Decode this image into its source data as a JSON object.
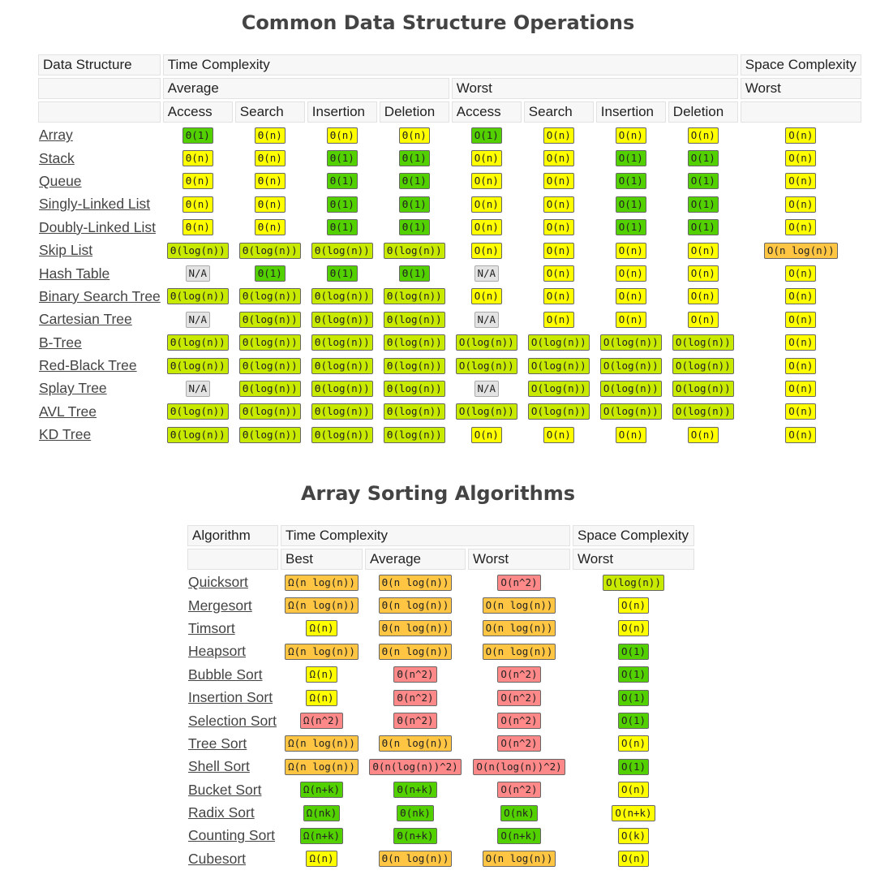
{
  "ds": {
    "title": "Common Data Structure Operations",
    "headers": {
      "data_structure": "Data Structure",
      "time_complexity": "Time Complexity",
      "space_complexity": "Space Complexity",
      "average": "Average",
      "worst": "Worst",
      "space_worst": "Worst",
      "ops": [
        "Access",
        "Search",
        "Insertion",
        "Deletion",
        "Access",
        "Search",
        "Insertion",
        "Deletion"
      ]
    },
    "rows": [
      {
        "name": "Array",
        "cells": [
          [
            "Θ(1)",
            "green"
          ],
          [
            "Θ(n)",
            "yellow"
          ],
          [
            "Θ(n)",
            "yellow"
          ],
          [
            "Θ(n)",
            "yellow"
          ],
          [
            "O(1)",
            "green"
          ],
          [
            "O(n)",
            "yellow"
          ],
          [
            "O(n)",
            "yellow"
          ],
          [
            "O(n)",
            "yellow"
          ],
          [
            "O(n)",
            "yellow"
          ]
        ]
      },
      {
        "name": "Stack",
        "cells": [
          [
            "Θ(n)",
            "yellow"
          ],
          [
            "Θ(n)",
            "yellow"
          ],
          [
            "Θ(1)",
            "green"
          ],
          [
            "Θ(1)",
            "green"
          ],
          [
            "O(n)",
            "yellow"
          ],
          [
            "O(n)",
            "yellow"
          ],
          [
            "O(1)",
            "green"
          ],
          [
            "O(1)",
            "green"
          ],
          [
            "O(n)",
            "yellow"
          ]
        ]
      },
      {
        "name": "Queue",
        "cells": [
          [
            "Θ(n)",
            "yellow"
          ],
          [
            "Θ(n)",
            "yellow"
          ],
          [
            "Θ(1)",
            "green"
          ],
          [
            "Θ(1)",
            "green"
          ],
          [
            "O(n)",
            "yellow"
          ],
          [
            "O(n)",
            "yellow"
          ],
          [
            "O(1)",
            "green"
          ],
          [
            "O(1)",
            "green"
          ],
          [
            "O(n)",
            "yellow"
          ]
        ]
      },
      {
        "name": "Singly-Linked List",
        "cells": [
          [
            "Θ(n)",
            "yellow"
          ],
          [
            "Θ(n)",
            "yellow"
          ],
          [
            "Θ(1)",
            "green"
          ],
          [
            "Θ(1)",
            "green"
          ],
          [
            "O(n)",
            "yellow"
          ],
          [
            "O(n)",
            "yellow"
          ],
          [
            "O(1)",
            "green"
          ],
          [
            "O(1)",
            "green"
          ],
          [
            "O(n)",
            "yellow"
          ]
        ]
      },
      {
        "name": "Doubly-Linked List",
        "cells": [
          [
            "Θ(n)",
            "yellow"
          ],
          [
            "Θ(n)",
            "yellow"
          ],
          [
            "Θ(1)",
            "green"
          ],
          [
            "Θ(1)",
            "green"
          ],
          [
            "O(n)",
            "yellow"
          ],
          [
            "O(n)",
            "yellow"
          ],
          [
            "O(1)",
            "green"
          ],
          [
            "O(1)",
            "green"
          ],
          [
            "O(n)",
            "yellow"
          ]
        ]
      },
      {
        "name": "Skip List",
        "cells": [
          [
            "Θ(log(n))",
            "yellowgreen"
          ],
          [
            "Θ(log(n))",
            "yellowgreen"
          ],
          [
            "Θ(log(n))",
            "yellowgreen"
          ],
          [
            "Θ(log(n))",
            "yellowgreen"
          ],
          [
            "O(n)",
            "yellow"
          ],
          [
            "O(n)",
            "yellow"
          ],
          [
            "O(n)",
            "yellow"
          ],
          [
            "O(n)",
            "yellow"
          ],
          [
            "O(n log(n))",
            "orange"
          ]
        ]
      },
      {
        "name": "Hash Table",
        "cells": [
          [
            "N/A",
            "gray"
          ],
          [
            "Θ(1)",
            "green"
          ],
          [
            "Θ(1)",
            "green"
          ],
          [
            "Θ(1)",
            "green"
          ],
          [
            "N/A",
            "gray"
          ],
          [
            "O(n)",
            "yellow"
          ],
          [
            "O(n)",
            "yellow"
          ],
          [
            "O(n)",
            "yellow"
          ],
          [
            "O(n)",
            "yellow"
          ]
        ]
      },
      {
        "name": "Binary Search Tree",
        "cells": [
          [
            "Θ(log(n))",
            "yellowgreen"
          ],
          [
            "Θ(log(n))",
            "yellowgreen"
          ],
          [
            "Θ(log(n))",
            "yellowgreen"
          ],
          [
            "Θ(log(n))",
            "yellowgreen"
          ],
          [
            "O(n)",
            "yellow"
          ],
          [
            "O(n)",
            "yellow"
          ],
          [
            "O(n)",
            "yellow"
          ],
          [
            "O(n)",
            "yellow"
          ],
          [
            "O(n)",
            "yellow"
          ]
        ]
      },
      {
        "name": "Cartesian Tree",
        "cells": [
          [
            "N/A",
            "gray"
          ],
          [
            "Θ(log(n))",
            "yellowgreen"
          ],
          [
            "Θ(log(n))",
            "yellowgreen"
          ],
          [
            "Θ(log(n))",
            "yellowgreen"
          ],
          [
            "N/A",
            "gray"
          ],
          [
            "O(n)",
            "yellow"
          ],
          [
            "O(n)",
            "yellow"
          ],
          [
            "O(n)",
            "yellow"
          ],
          [
            "O(n)",
            "yellow"
          ]
        ]
      },
      {
        "name": "B-Tree",
        "cells": [
          [
            "Θ(log(n))",
            "yellowgreen"
          ],
          [
            "Θ(log(n))",
            "yellowgreen"
          ],
          [
            "Θ(log(n))",
            "yellowgreen"
          ],
          [
            "Θ(log(n))",
            "yellowgreen"
          ],
          [
            "O(log(n))",
            "yellowgreen"
          ],
          [
            "O(log(n))",
            "yellowgreen"
          ],
          [
            "O(log(n))",
            "yellowgreen"
          ],
          [
            "O(log(n))",
            "yellowgreen"
          ],
          [
            "O(n)",
            "yellow"
          ]
        ]
      },
      {
        "name": "Red-Black Tree",
        "cells": [
          [
            "Θ(log(n))",
            "yellowgreen"
          ],
          [
            "Θ(log(n))",
            "yellowgreen"
          ],
          [
            "Θ(log(n))",
            "yellowgreen"
          ],
          [
            "Θ(log(n))",
            "yellowgreen"
          ],
          [
            "O(log(n))",
            "yellowgreen"
          ],
          [
            "O(log(n))",
            "yellowgreen"
          ],
          [
            "O(log(n))",
            "yellowgreen"
          ],
          [
            "O(log(n))",
            "yellowgreen"
          ],
          [
            "O(n)",
            "yellow"
          ]
        ]
      },
      {
        "name": "Splay Tree",
        "cells": [
          [
            "N/A",
            "gray"
          ],
          [
            "Θ(log(n))",
            "yellowgreen"
          ],
          [
            "Θ(log(n))",
            "yellowgreen"
          ],
          [
            "Θ(log(n))",
            "yellowgreen"
          ],
          [
            "N/A",
            "gray"
          ],
          [
            "O(log(n))",
            "yellowgreen"
          ],
          [
            "O(log(n))",
            "yellowgreen"
          ],
          [
            "O(log(n))",
            "yellowgreen"
          ],
          [
            "O(n)",
            "yellow"
          ]
        ]
      },
      {
        "name": "AVL Tree",
        "cells": [
          [
            "Θ(log(n))",
            "yellowgreen"
          ],
          [
            "Θ(log(n))",
            "yellowgreen"
          ],
          [
            "Θ(log(n))",
            "yellowgreen"
          ],
          [
            "Θ(log(n))",
            "yellowgreen"
          ],
          [
            "O(log(n))",
            "yellowgreen"
          ],
          [
            "O(log(n))",
            "yellowgreen"
          ],
          [
            "O(log(n))",
            "yellowgreen"
          ],
          [
            "O(log(n))",
            "yellowgreen"
          ],
          [
            "O(n)",
            "yellow"
          ]
        ]
      },
      {
        "name": "KD Tree",
        "cells": [
          [
            "Θ(log(n))",
            "yellowgreen"
          ],
          [
            "Θ(log(n))",
            "yellowgreen"
          ],
          [
            "Θ(log(n))",
            "yellowgreen"
          ],
          [
            "Θ(log(n))",
            "yellowgreen"
          ],
          [
            "O(n)",
            "yellow"
          ],
          [
            "O(n)",
            "yellow"
          ],
          [
            "O(n)",
            "yellow"
          ],
          [
            "O(n)",
            "yellow"
          ],
          [
            "O(n)",
            "yellow"
          ]
        ]
      }
    ]
  },
  "sort": {
    "title": "Array Sorting Algorithms",
    "headers": {
      "algorithm": "Algorithm",
      "time_complexity": "Time Complexity",
      "space_complexity": "Space Complexity",
      "best": "Best",
      "average": "Average",
      "worst": "Worst",
      "space_worst": "Worst"
    },
    "rows": [
      {
        "name": "Quicksort",
        "cells": [
          [
            "Ω(n log(n))",
            "orange"
          ],
          [
            "Θ(n log(n))",
            "orange"
          ],
          [
            "O(n^2)",
            "red"
          ],
          [
            "O(log(n))",
            "yellowgreen"
          ]
        ]
      },
      {
        "name": "Mergesort",
        "cells": [
          [
            "Ω(n log(n))",
            "orange"
          ],
          [
            "Θ(n log(n))",
            "orange"
          ],
          [
            "O(n log(n))",
            "orange"
          ],
          [
            "O(n)",
            "yellow"
          ]
        ]
      },
      {
        "name": "Timsort",
        "cells": [
          [
            "Ω(n)",
            "yellow"
          ],
          [
            "Θ(n log(n))",
            "orange"
          ],
          [
            "O(n log(n))",
            "orange"
          ],
          [
            "O(n)",
            "yellow"
          ]
        ]
      },
      {
        "name": "Heapsort",
        "cells": [
          [
            "Ω(n log(n))",
            "orange"
          ],
          [
            "Θ(n log(n))",
            "orange"
          ],
          [
            "O(n log(n))",
            "orange"
          ],
          [
            "O(1)",
            "green"
          ]
        ]
      },
      {
        "name": "Bubble Sort",
        "cells": [
          [
            "Ω(n)",
            "yellow"
          ],
          [
            "Θ(n^2)",
            "red"
          ],
          [
            "O(n^2)",
            "red"
          ],
          [
            "O(1)",
            "green"
          ]
        ]
      },
      {
        "name": "Insertion Sort",
        "cells": [
          [
            "Ω(n)",
            "yellow"
          ],
          [
            "Θ(n^2)",
            "red"
          ],
          [
            "O(n^2)",
            "red"
          ],
          [
            "O(1)",
            "green"
          ]
        ]
      },
      {
        "name": "Selection Sort",
        "cells": [
          [
            "Ω(n^2)",
            "red"
          ],
          [
            "Θ(n^2)",
            "red"
          ],
          [
            "O(n^2)",
            "red"
          ],
          [
            "O(1)",
            "green"
          ]
        ]
      },
      {
        "name": "Tree Sort",
        "cells": [
          [
            "Ω(n log(n))",
            "orange"
          ],
          [
            "Θ(n log(n))",
            "orange"
          ],
          [
            "O(n^2)",
            "red"
          ],
          [
            "O(n)",
            "yellow"
          ]
        ]
      },
      {
        "name": "Shell Sort",
        "cells": [
          [
            "Ω(n log(n))",
            "orange"
          ],
          [
            "Θ(n(log(n))^2)",
            "red"
          ],
          [
            "O(n(log(n))^2)",
            "red"
          ],
          [
            "O(1)",
            "green"
          ]
        ]
      },
      {
        "name": "Bucket Sort",
        "cells": [
          [
            "Ω(n+k)",
            "green"
          ],
          [
            "Θ(n+k)",
            "green"
          ],
          [
            "O(n^2)",
            "red"
          ],
          [
            "O(n)",
            "yellow"
          ]
        ]
      },
      {
        "name": "Radix Sort",
        "cells": [
          [
            "Ω(nk)",
            "green"
          ],
          [
            "Θ(nk)",
            "green"
          ],
          [
            "O(nk)",
            "green"
          ],
          [
            "O(n+k)",
            "yellow"
          ]
        ]
      },
      {
        "name": "Counting Sort",
        "cells": [
          [
            "Ω(n+k)",
            "green"
          ],
          [
            "Θ(n+k)",
            "green"
          ],
          [
            "O(n+k)",
            "green"
          ],
          [
            "O(k)",
            "yellow"
          ]
        ]
      },
      {
        "name": "Cubesort",
        "cells": [
          [
            "Ω(n)",
            "yellow"
          ],
          [
            "Θ(n log(n))",
            "orange"
          ],
          [
            "O(n log(n))",
            "orange"
          ],
          [
            "O(n)",
            "yellow"
          ]
        ]
      }
    ]
  }
}
